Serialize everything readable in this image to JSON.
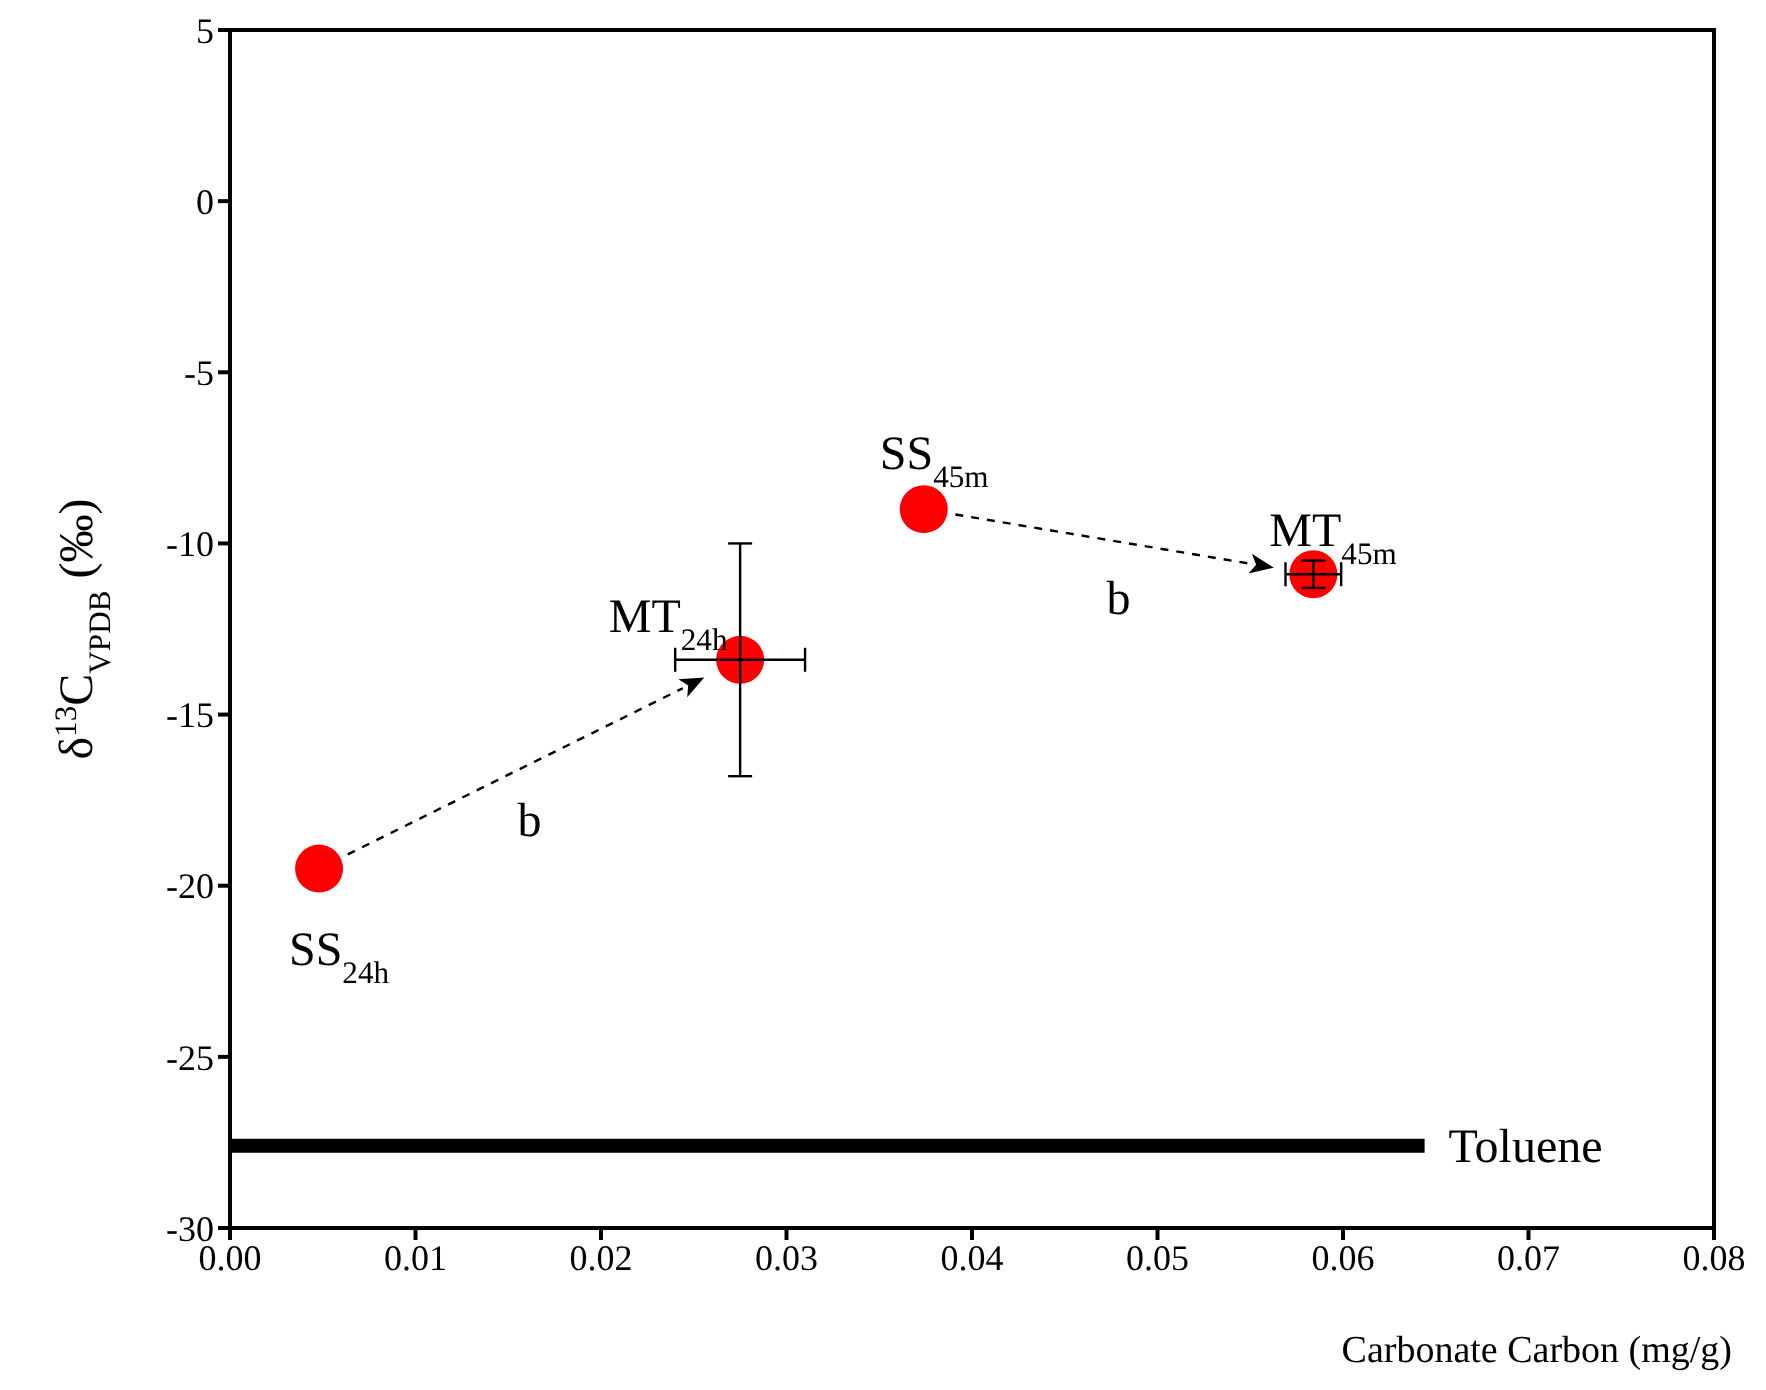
{
  "chart_data": {
    "type": "scatter",
    "xlabel": "Carbonate Carbon (mg/g)",
    "ylabel": "δ$^{13}$C$_{VPDB}$ (‰)",
    "xlim": [
      0,
      0.08
    ],
    "xticks": [
      {
        "value": 0,
        "label": "0.00"
      },
      0.01,
      0.02,
      0.03,
      0.04,
      0.05,
      0.06,
      0.07,
      0.08
    ],
    "ylim": [
      -30,
      5
    ],
    "yticks": [
      -30,
      -25,
      -20,
      -15,
      -10,
      -5,
      0,
      5
    ],
    "grid": false,
    "legend": false,
    "series": [
      {
        "color": "#ff0000",
        "marker": "circle",
        "x": [
          0.0048,
          0.0275,
          0.0374,
          0.0584
        ],
        "values": [
          -19.5,
          -13.4,
          -9.0,
          -10.9
        ],
        "errors": [
          null,
          3.4,
          null,
          0.4
        ],
        "xerrors": [
          null,
          0.0035,
          null,
          0.0015
        ]
      },
      {
        "type": "line",
        "name": "Toluene",
        "color": "#000000",
        "x": [
          0,
          0.0644
        ],
        "values": [
          -27.6,
          -27.6
        ]
      }
    ],
    "annotations": [
      "SS$_{24h}$",
      "MT$_{24h}$",
      "SS$_{45m}$",
      "MT$_{45m}$",
      "b",
      "b"
    ]
  }
}
